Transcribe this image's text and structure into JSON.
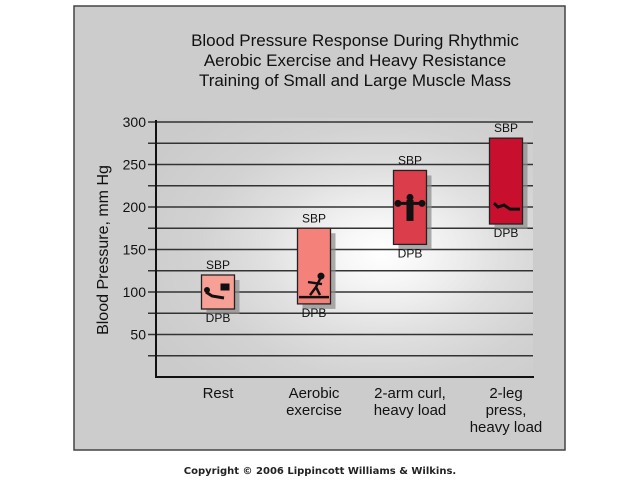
{
  "chart_data": {
    "type": "bar",
    "subtype": "floating-range",
    "title": [
      "Blood Pressure Response During Rhythmic",
      "Aerobic Exercise and Heavy Resistance",
      "Training of Small and Large Muscle Mass"
    ],
    "xlabel": "",
    "ylabel": "Blood Pressure, mm Hg",
    "ylim": [
      0,
      300
    ],
    "yticks": [
      50,
      100,
      150,
      200,
      250,
      300
    ],
    "grid_step": 25,
    "grid": true,
    "categories": [
      [
        "Rest"
      ],
      [
        "Aerobic",
        "exercise"
      ],
      [
        "2-arm curl,",
        "heavy load"
      ],
      [
        "2-leg",
        "press,",
        "heavy load"
      ]
    ],
    "series": [
      {
        "name": "SBP",
        "values": [
          120,
          175,
          243,
          281
        ]
      },
      {
        "name": "DPB",
        "values": [
          80,
          86,
          156,
          180
        ]
      }
    ],
    "top_label": "SBP",
    "bottom_label": "DPB",
    "icons": [
      "reclining-person-icon",
      "cross-country-skier-icon",
      "arm-curl-lifter-icon",
      "leg-press-icon"
    ],
    "colors": [
      "#f7a096",
      "#f4827a",
      "#dc3d4b",
      "#c8102e"
    ]
  },
  "footer": {
    "copyright": "Copyright © 2006 Lippincott Williams & Wilkins."
  }
}
